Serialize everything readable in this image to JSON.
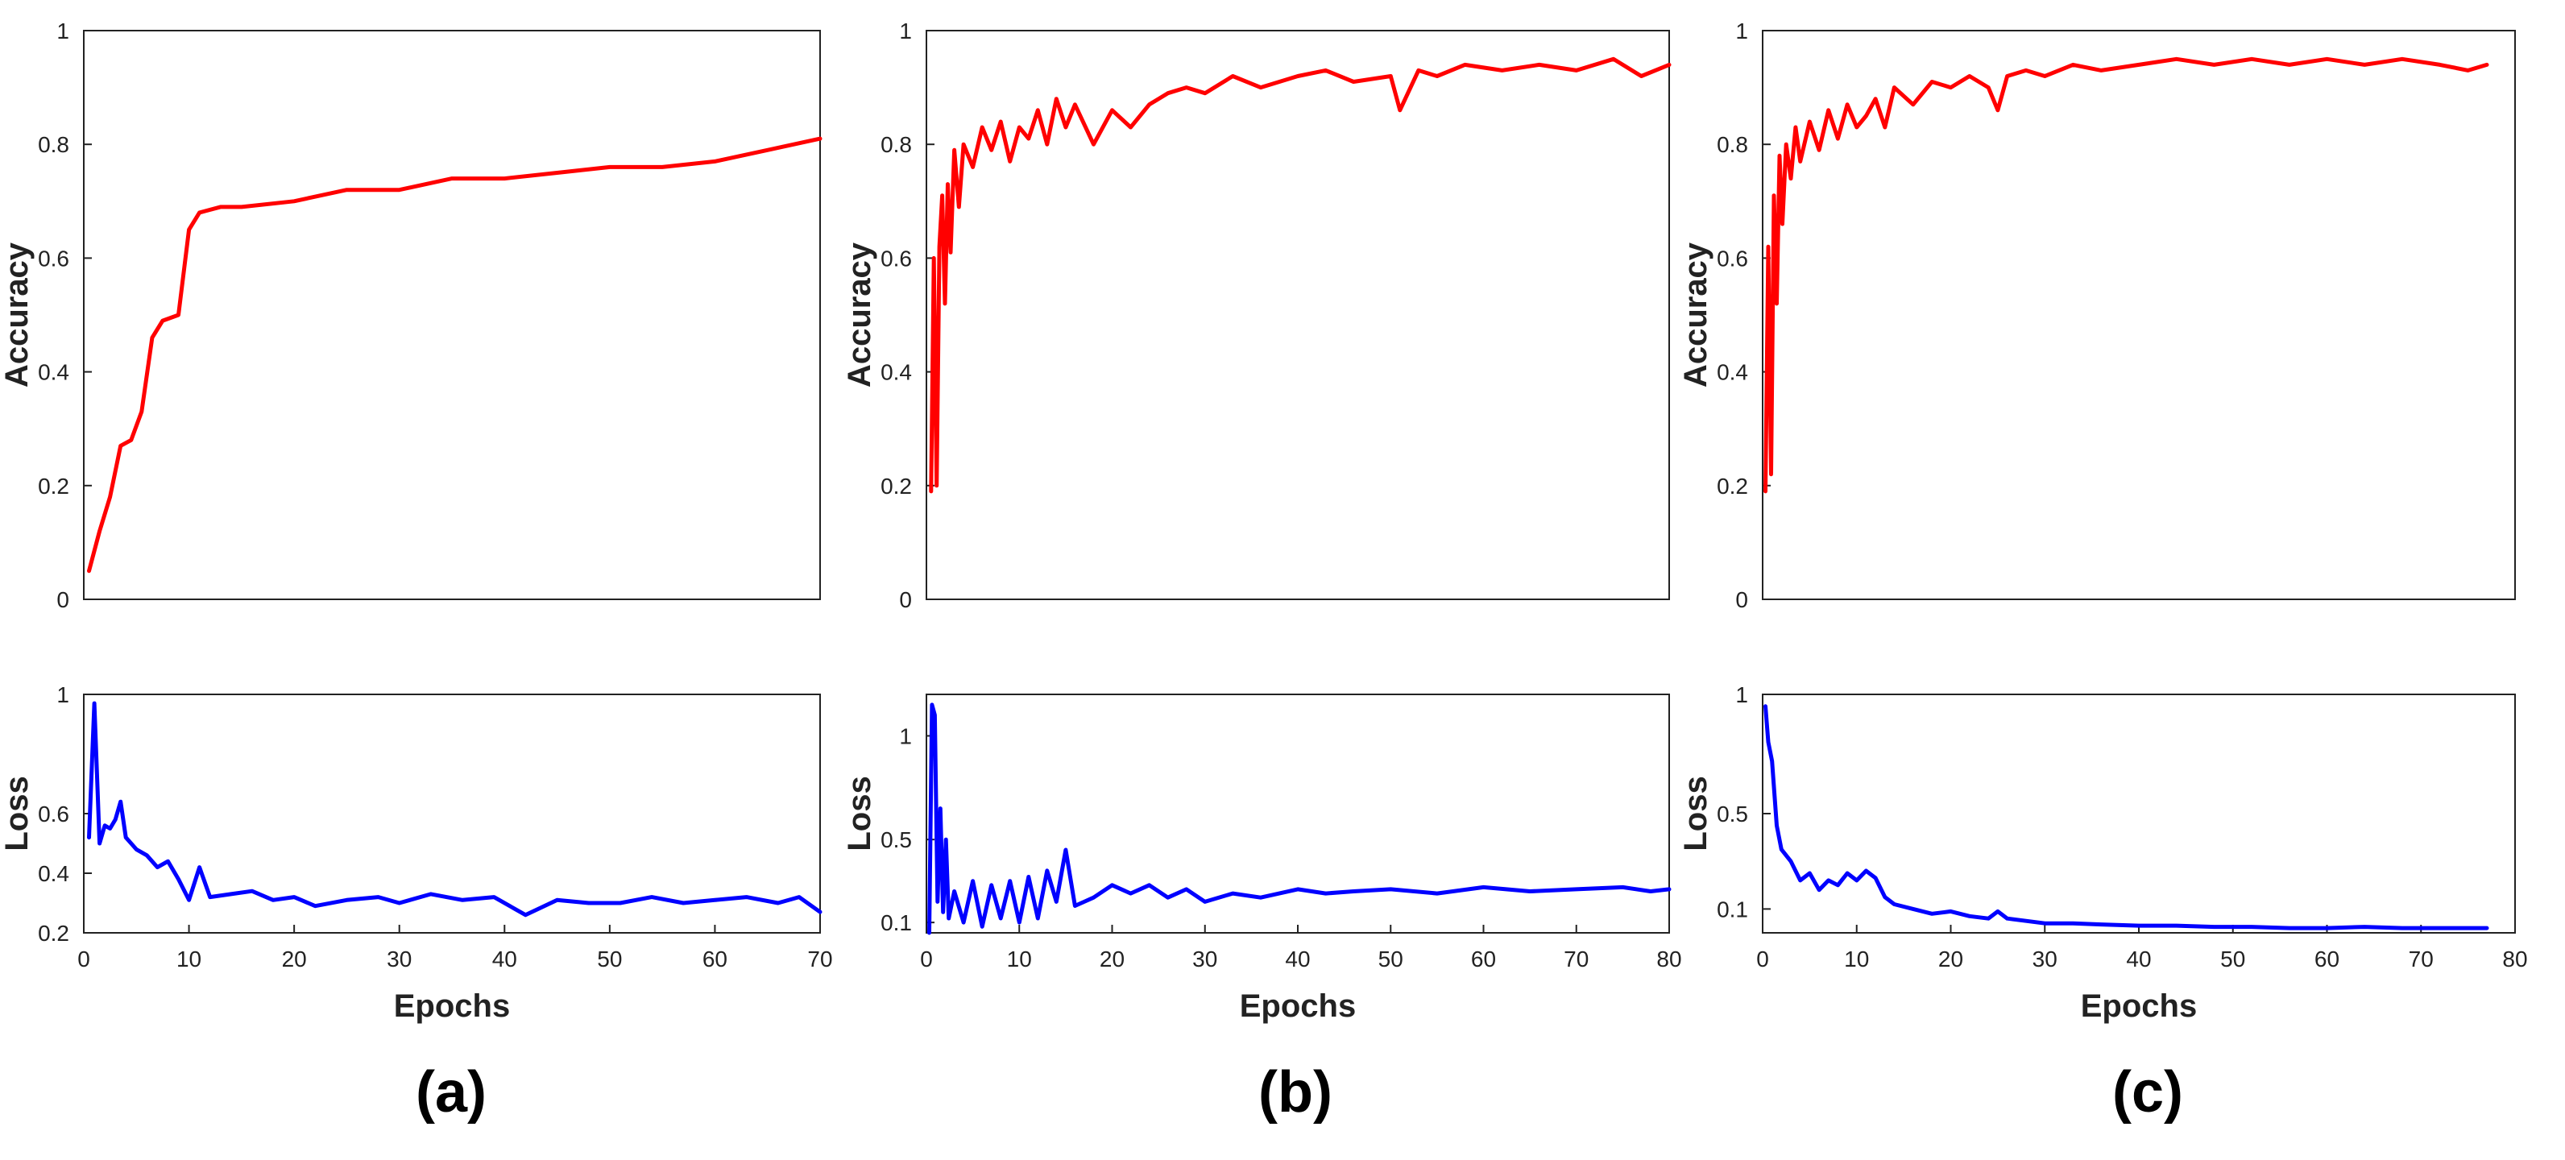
{
  "colors": {
    "accuracy": "#ff0000",
    "loss": "#0000ff",
    "axis": "#222222"
  },
  "chart_data": [
    {
      "type": "line",
      "panel": "a",
      "caption": "(a)",
      "x_max": 70,
      "accuracy": {
        "ylabel": "Accuracy",
        "ylim": [
          0,
          1
        ],
        "yticks": [
          "0",
          "0.2",
          "0.4",
          "0.6",
          "0.8",
          "1"
        ],
        "x": [
          0.5,
          1.5,
          2.5,
          3.5,
          4.5,
          5.5,
          6.5,
          7.5,
          9,
          10,
          11,
          13,
          15,
          20,
          25,
          30,
          35,
          40,
          45,
          50,
          55,
          60,
          65,
          70
        ],
        "y": [
          0.05,
          0.12,
          0.18,
          0.27,
          0.28,
          0.33,
          0.46,
          0.49,
          0.5,
          0.65,
          0.68,
          0.69,
          0.69,
          0.7,
          0.72,
          0.72,
          0.74,
          0.74,
          0.75,
          0.76,
          0.76,
          0.77,
          0.79,
          0.81
        ]
      },
      "loss": {
        "ylabel": "Loss",
        "ylim": [
          0.2,
          1.0
        ],
        "ytick_values": [
          0.2,
          0.4,
          0.6,
          1
        ],
        "yticks": [
          "0.2",
          "0.4",
          "0.6",
          "1"
        ],
        "xlabel": "Epochs",
        "xticks": [
          "0",
          "10",
          "20",
          "30",
          "40",
          "50",
          "60",
          "70"
        ],
        "x": [
          0.5,
          1,
          1.5,
          2,
          2.5,
          3,
          3.5,
          4,
          4.5,
          5,
          6,
          7,
          8,
          9,
          10,
          11,
          12,
          14,
          16,
          18,
          20,
          22,
          25,
          28,
          30,
          33,
          36,
          39,
          42,
          45,
          48,
          51,
          54,
          57,
          60,
          63,
          66,
          68,
          70
        ],
        "y": [
          0.52,
          0.97,
          0.5,
          0.56,
          0.55,
          0.58,
          0.64,
          0.52,
          0.5,
          0.48,
          0.46,
          0.42,
          0.44,
          0.38,
          0.31,
          0.42,
          0.32,
          0.33,
          0.34,
          0.31,
          0.32,
          0.29,
          0.31,
          0.32,
          0.3,
          0.33,
          0.31,
          0.32,
          0.26,
          0.31,
          0.3,
          0.3,
          0.32,
          0.3,
          0.31,
          0.32,
          0.3,
          0.32,
          0.27
        ]
      }
    },
    {
      "type": "line",
      "panel": "b",
      "caption": "(b)",
      "x_max": 80,
      "accuracy": {
        "ylabel": "Accuracy",
        "ylim": [
          0,
          1
        ],
        "yticks": [
          "0",
          "0.2",
          "0.4",
          "0.6",
          "0.8",
          "1"
        ],
        "x": [
          0.5,
          0.8,
          1.1,
          1.4,
          1.7,
          2.0,
          2.3,
          2.6,
          3.0,
          3.5,
          4,
          5,
          6,
          7,
          8,
          9,
          10,
          11,
          12,
          13,
          14,
          15,
          16,
          18,
          20,
          22,
          24,
          26,
          28,
          30,
          33,
          36,
          40,
          43,
          46,
          50,
          51,
          53,
          55,
          58,
          62,
          66,
          70,
          74,
          77,
          80
        ],
        "y": [
          0.19,
          0.6,
          0.2,
          0.62,
          0.71,
          0.52,
          0.73,
          0.61,
          0.79,
          0.69,
          0.8,
          0.76,
          0.83,
          0.79,
          0.84,
          0.77,
          0.83,
          0.81,
          0.86,
          0.8,
          0.88,
          0.83,
          0.87,
          0.8,
          0.86,
          0.83,
          0.87,
          0.89,
          0.9,
          0.89,
          0.92,
          0.9,
          0.92,
          0.93,
          0.91,
          0.92,
          0.86,
          0.93,
          0.92,
          0.94,
          0.93,
          0.94,
          0.93,
          0.95,
          0.92,
          0.94
        ]
      },
      "loss": {
        "ylabel": "Loss",
        "ylim": [
          0.05,
          1.2
        ],
        "ytick_values": [
          0.1,
          0.5,
          1
        ],
        "yticks": [
          "0.1",
          "0.5",
          "1"
        ],
        "xlabel": "Epochs",
        "xticks": [
          "0",
          "10",
          "20",
          "30",
          "40",
          "50",
          "60",
          "70",
          "80"
        ],
        "x": [
          0.3,
          0.6,
          0.9,
          1.2,
          1.5,
          1.8,
          2.1,
          2.4,
          3,
          4,
          5,
          6,
          7,
          8,
          9,
          10,
          11,
          12,
          13,
          14,
          15,
          16,
          17,
          18,
          20,
          22,
          24,
          26,
          28,
          30,
          33,
          36,
          40,
          43,
          46,
          50,
          55,
          60,
          65,
          70,
          75,
          78,
          80
        ],
        "y": [
          0.05,
          1.15,
          1.1,
          0.2,
          0.65,
          0.15,
          0.5,
          0.12,
          0.25,
          0.1,
          0.3,
          0.08,
          0.28,
          0.12,
          0.3,
          0.1,
          0.32,
          0.12,
          0.35,
          0.2,
          0.45,
          0.18,
          0.2,
          0.22,
          0.28,
          0.24,
          0.28,
          0.22,
          0.26,
          0.2,
          0.24,
          0.22,
          0.26,
          0.24,
          0.25,
          0.26,
          0.24,
          0.27,
          0.25,
          0.26,
          0.27,
          0.25,
          0.26
        ]
      }
    },
    {
      "type": "line",
      "panel": "c",
      "caption": "(c)",
      "x_max": 80,
      "accuracy": {
        "ylabel": "Accuracy",
        "ylim": [
          0,
          1
        ],
        "yticks": [
          "0",
          "0.2",
          "0.4",
          "0.6",
          "0.8",
          "1"
        ],
        "x": [
          0.3,
          0.6,
          0.9,
          1.2,
          1.5,
          1.8,
          2.1,
          2.5,
          3,
          3.5,
          4,
          5,
          6,
          7,
          8,
          9,
          10,
          11,
          12,
          13,
          14,
          16,
          18,
          20,
          22,
          24,
          25,
          26,
          28,
          30,
          33,
          36,
          40,
          44,
          48,
          52,
          56,
          60,
          64,
          68,
          72,
          75,
          77
        ],
        "y": [
          0.19,
          0.62,
          0.22,
          0.71,
          0.52,
          0.78,
          0.66,
          0.8,
          0.74,
          0.83,
          0.77,
          0.84,
          0.79,
          0.86,
          0.81,
          0.87,
          0.83,
          0.85,
          0.88,
          0.83,
          0.9,
          0.87,
          0.91,
          0.9,
          0.92,
          0.9,
          0.86,
          0.92,
          0.93,
          0.92,
          0.94,
          0.93,
          0.94,
          0.95,
          0.94,
          0.95,
          0.94,
          0.95,
          0.94,
          0.95,
          0.94,
          0.93,
          0.94
        ]
      },
      "loss": {
        "ylabel": "Loss",
        "ylim": [
          0,
          1.0
        ],
        "ytick_values": [
          0.1,
          0.5,
          1
        ],
        "yticks": [
          "0.1",
          "0.5",
          "1"
        ],
        "xlabel": "Epochs",
        "xticks": [
          "0",
          "10",
          "20",
          "30",
          "40",
          "50",
          "60",
          "70",
          "80"
        ],
        "x": [
          0.3,
          0.6,
          1,
          1.5,
          2,
          3,
          4,
          5,
          6,
          7,
          8,
          9,
          10,
          11,
          12,
          13,
          14,
          16,
          18,
          20,
          22,
          24,
          25,
          26,
          28,
          30,
          33,
          36,
          40,
          44,
          48,
          52,
          56,
          60,
          64,
          68,
          72,
          77
        ],
        "y": [
          0.95,
          0.8,
          0.72,
          0.45,
          0.35,
          0.3,
          0.22,
          0.25,
          0.18,
          0.22,
          0.2,
          0.25,
          0.22,
          0.26,
          0.23,
          0.15,
          0.12,
          0.1,
          0.08,
          0.09,
          0.07,
          0.06,
          0.09,
          0.06,
          0.05,
          0.04,
          0.04,
          0.035,
          0.03,
          0.03,
          0.025,
          0.025,
          0.02,
          0.02,
          0.025,
          0.02,
          0.02,
          0.02
        ]
      }
    }
  ]
}
